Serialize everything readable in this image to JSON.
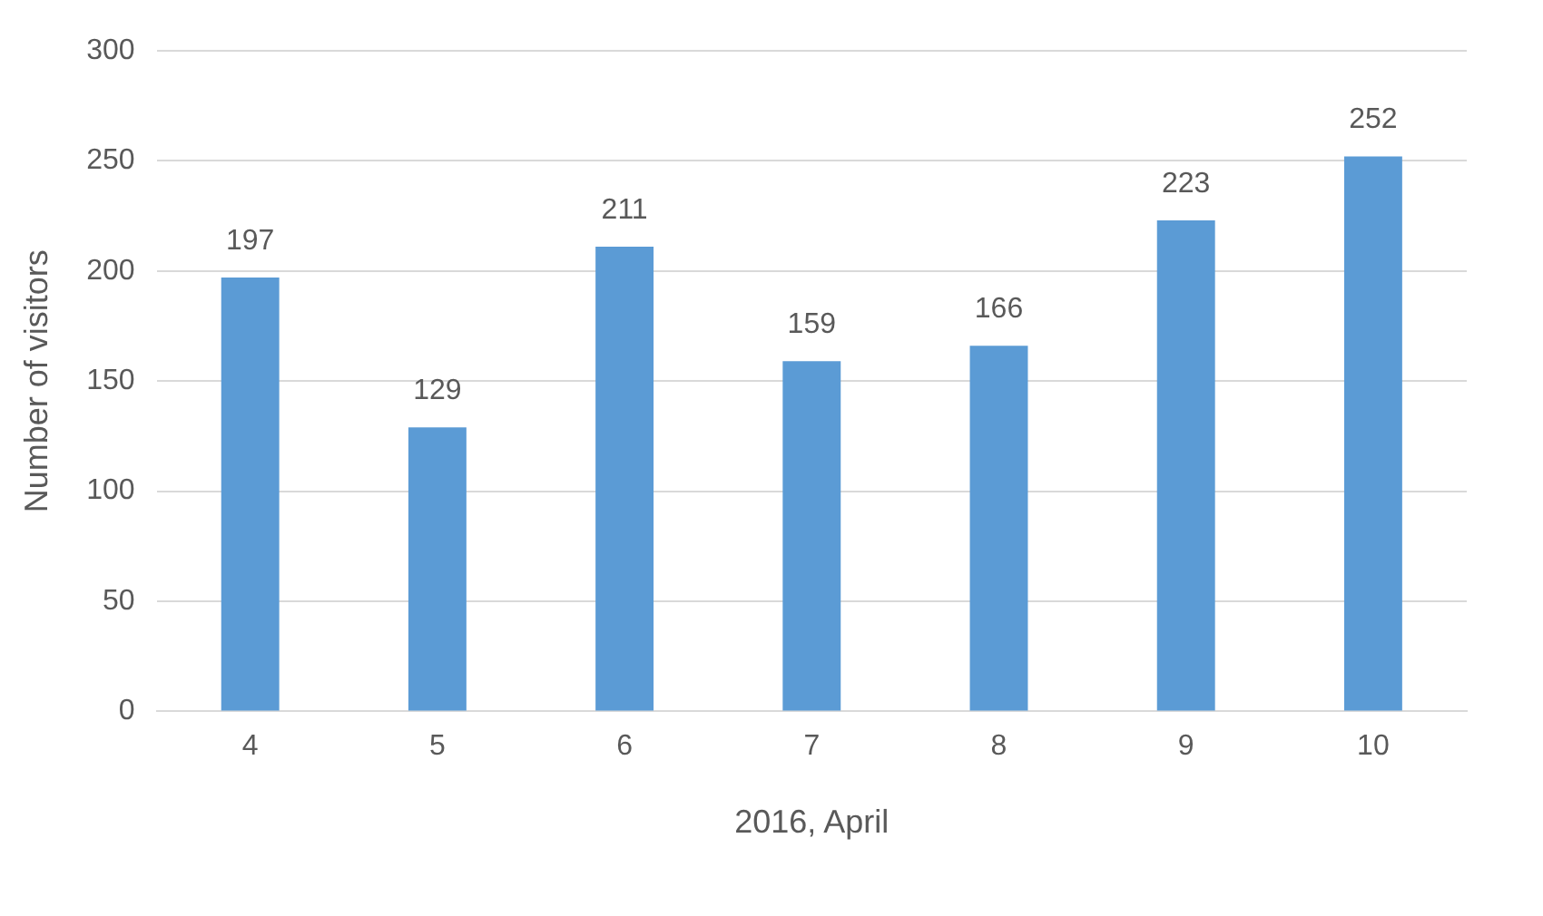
{
  "chart_data": {
    "type": "bar",
    "xlabel": "2016, April",
    "ylabel": "Number of visitors",
    "categories": [
      "4",
      "5",
      "6",
      "7",
      "8",
      "9",
      "10"
    ],
    "values": [
      197,
      129,
      211,
      159,
      166,
      223,
      252
    ],
    "color": "#5b9bd5",
    "ylim": [
      0,
      300
    ],
    "yticks": [
      0,
      50,
      100,
      150,
      200,
      250,
      300
    ],
    "grid": "y",
    "data_labels": true,
    "legend": false
  }
}
